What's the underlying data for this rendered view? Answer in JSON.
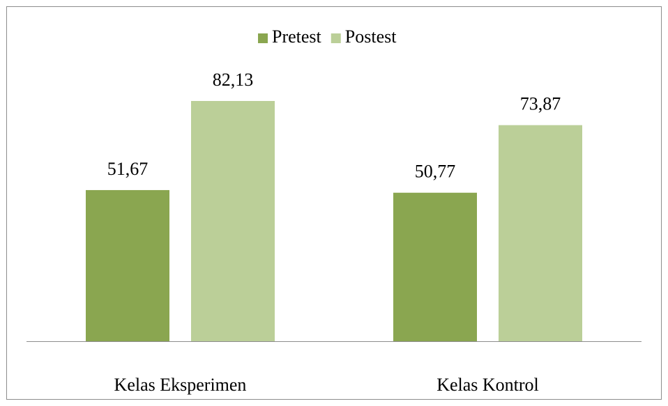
{
  "chart_data": {
    "type": "bar",
    "categories": [
      "Kelas Eksperimen",
      "Kelas Kontrol"
    ],
    "series": [
      {
        "name": "Pretest",
        "color": "#8aa650",
        "values": [
          51.67,
          50.77
        ],
        "value_labels": [
          "51,67",
          "50,77"
        ]
      },
      {
        "name": "Postest",
        "color": "#bbcf98",
        "values": [
          82.13,
          73.87
        ],
        "value_labels": [
          "82,13",
          "73,87"
        ]
      }
    ],
    "legend": "top"
  }
}
